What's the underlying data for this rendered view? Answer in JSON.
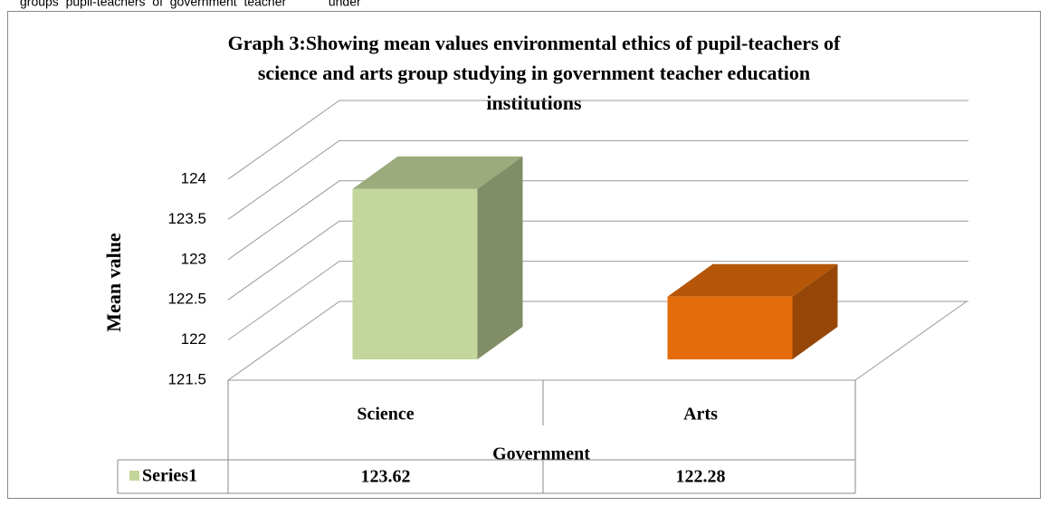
{
  "page_text": "groups  pupil-teachers  of  government  teacher            under",
  "chart_data": {
    "type": "bar3d",
    "title": [
      "Graph 3:Showing mean values environmental ethics of pupil-teachers of",
      "science and arts group studying in government teacher education",
      "institutions"
    ],
    "y_label": "Mean value",
    "categories": [
      "Science",
      "Arts"
    ],
    "group_label": "Government",
    "series": [
      {
        "name": "Series1",
        "color": "#c3d69b",
        "values": [
          123.62,
          122.28
        ]
      }
    ],
    "colors": [
      "#c3d69b",
      "#e46c0a"
    ],
    "ylim": [
      121.5,
      124
    ],
    "yticks": [
      121.5,
      122,
      122.5,
      123,
      123.5,
      124
    ],
    "grid": true,
    "data_table": true
  }
}
